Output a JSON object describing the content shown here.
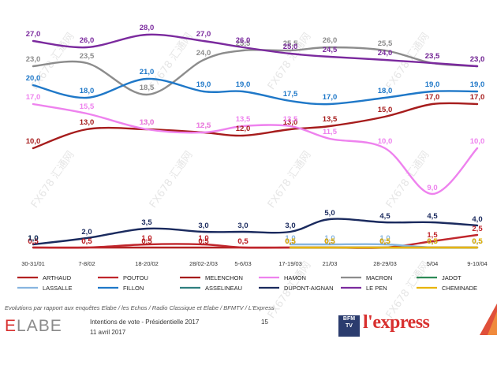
{
  "chart_data": {
    "type": "line",
    "categories": [
      "30-31/01",
      "7-8/02",
      "18-20/02",
      "28/02-2/03",
      "5-6/03",
      "17-19/03",
      "21/03",
      "28-29/03",
      "5/04",
      "9-10/04"
    ],
    "series": [
      {
        "name": "ARTHAUD",
        "color": "#b22222",
        "values": [
          0.5,
          0.5,
          0.5,
          0.5,
          0.5,
          0.5,
          0.5,
          0.5,
          0.5,
          0.5
        ]
      },
      {
        "name": "POUTOU",
        "color": "#c0262c",
        "values": [
          0.5,
          0.5,
          1.0,
          1.0,
          0.5,
          0.5,
          0.5,
          0.5,
          1.5,
          2.5
        ]
      },
      {
        "name": "MELENCHON",
        "color": "#a61c1c",
        "values": [
          10.0,
          13.0,
          13.0,
          12.5,
          12.0,
          13.0,
          13.5,
          15.0,
          17.0,
          17.0
        ]
      },
      {
        "name": "HAMON",
        "color": "#ee82ee",
        "values": [
          17.0,
          15.5,
          13.0,
          12.5,
          13.5,
          13.5,
          11.5,
          10.0,
          9.0,
          10.0
        ]
      },
      {
        "name": "MACRON",
        "color": "#8c8c8c",
        "values": [
          23.0,
          23.5,
          18.5,
          24.0,
          25.5,
          25.5,
          26.0,
          25.5,
          23.5,
          23.0
        ]
      },
      {
        "name": "JADOT",
        "color": "#2e8b57",
        "values": [
          1.0,
          null,
          null,
          null,
          null,
          null,
          null,
          null,
          null,
          null
        ]
      },
      {
        "name": "LASSALLE",
        "color": "#87b5e0",
        "values": [
          null,
          null,
          null,
          null,
          null,
          1.0,
          1.0,
          1.0,
          0.5,
          0.5
        ]
      },
      {
        "name": "FILLON",
        "color": "#1f78c8",
        "values": [
          20.0,
          18.0,
          21.0,
          19.0,
          19.0,
          17.5,
          17.0,
          18.0,
          19.0,
          19.0
        ]
      },
      {
        "name": "ASSELINEAU",
        "color": "#2f7f7f",
        "values": [
          null,
          null,
          null,
          null,
          null,
          0.5,
          0.5,
          0.5,
          0.5,
          0.5
        ]
      },
      {
        "name": "DUPONT-AIGNAN",
        "color": "#1a2a5e",
        "values": [
          1.0,
          2.0,
          3.5,
          3.0,
          3.0,
          3.0,
          5.0,
          4.5,
          4.5,
          4.0
        ]
      },
      {
        "name": "LE PEN",
        "color": "#7b2a9e",
        "values": [
          27.0,
          26.0,
          28.0,
          27.0,
          26.0,
          25.0,
          24.5,
          24.0,
          23.5,
          23.0
        ]
      },
      {
        "name": "CHEMINADE",
        "color": "#e8b400",
        "values": [
          null,
          null,
          null,
          null,
          null,
          0.5,
          0.5,
          0.5,
          0.5,
          0.5
        ]
      }
    ],
    "legend": [
      "ARTHAUD",
      "POUTOU",
      "MELENCHON",
      "HAMON",
      "MACRON",
      "JADOT",
      "LASSALLE",
      "FILLON",
      "ASSELINEAU",
      "DUPONT-AIGNAN",
      "LE PEN",
      "CHEMINADE"
    ],
    "legend_position": "bottom",
    "grid": false,
    "ylim": [
      0,
      28
    ]
  },
  "footer": {
    "source": "Evolutions par rapport aux enquêtes Elabe / les Echos / Radio Classique et Elabe / BFMTV / L'Express",
    "brand": "ELABE",
    "caption_line1": "Intentions de vote - Présidentielle 2017",
    "caption_line2": "11 avril 2017",
    "page": "15",
    "logo_bfm": "BFM TV",
    "logo_express": "l'express"
  },
  "watermark": "FX678 汇通网"
}
